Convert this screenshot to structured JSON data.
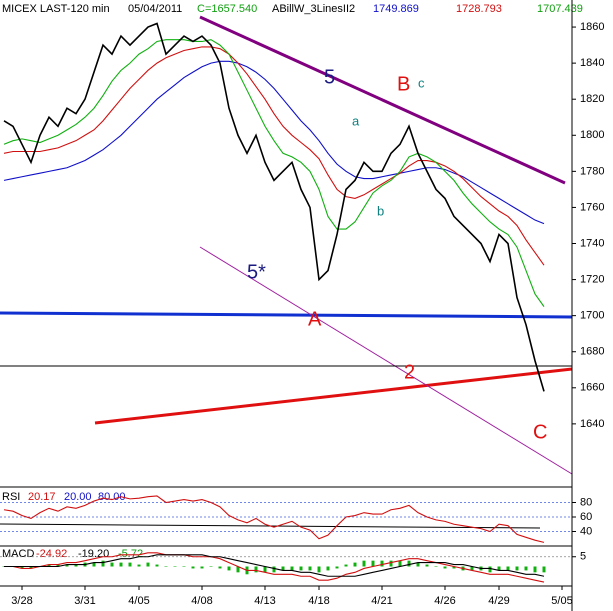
{
  "chart_data": [
    {
      "type": "line",
      "title": "MICEX LAST-120 min",
      "subtitle": "05/04/2011",
      "indicator": "ABillW_3LinesII2",
      "ylim": [
        1605,
        1875
      ],
      "yticks": [
        1640,
        1660,
        1680,
        1700,
        1720,
        1740,
        1760,
        1780,
        1800,
        1820,
        1840,
        1860
      ],
      "annotations": [
        "5",
        "B",
        "c",
        "a",
        "b",
        "5*",
        "A",
        "2",
        "C"
      ],
      "series": [
        {
          "name": "1749.869",
          "color": "#1010c8",
          "values": [
            1775,
            1776,
            1777,
            1778,
            1779,
            1780,
            1781,
            1782,
            1784,
            1786,
            1789,
            1792,
            1796,
            1800,
            1805,
            1810,
            1815,
            1820,
            1824,
            1828,
            1832,
            1835,
            1838,
            1840,
            1841,
            1841,
            1840,
            1838,
            1835,
            1831,
            1826,
            1820,
            1814,
            1808,
            1803,
            1797,
            1790,
            1784,
            1780,
            1777,
            1776,
            1776,
            1777,
            1778,
            1779,
            1780,
            1781,
            1782,
            1782,
            1781,
            1779,
            1777,
            1774,
            1771,
            1768,
            1765,
            1762,
            1759,
            1756,
            1753,
            1751,
            null,
            null
          ]
        },
        {
          "name": "1728.793",
          "color": "#d01010",
          "values": [
            1790,
            1791,
            1791,
            1791,
            1791,
            1792,
            1793,
            1795,
            1797,
            1800,
            1803,
            1808,
            1814,
            1820,
            1826,
            1831,
            1836,
            1840,
            1843,
            1845,
            1847,
            1848,
            1849,
            1849,
            1848,
            1845,
            1840,
            1834,
            1827,
            1820,
            1812,
            1805,
            1800,
            1796,
            1792,
            1787,
            1778,
            1770,
            1766,
            1765,
            1767,
            1770,
            1773,
            1776,
            1779,
            1783,
            1786,
            1786,
            1785,
            1783,
            1780,
            1776,
            1771,
            1766,
            1762,
            1758,
            1755,
            1750,
            1742,
            1735,
            1728,
            null,
            null
          ]
        },
        {
          "name": "1707.439",
          "color": "#10b010",
          "values": [
            1795,
            1797,
            1798,
            1797,
            1796,
            1798,
            1800,
            1803,
            1806,
            1810,
            1815,
            1822,
            1830,
            1836,
            1840,
            1845,
            1848,
            1852,
            1853,
            1853,
            1853,
            1852,
            1852,
            1853,
            1850,
            1845,
            1835,
            1825,
            1815,
            1805,
            1797,
            1790,
            1788,
            1785,
            1780,
            1770,
            1755,
            1748,
            1748,
            1752,
            1760,
            1768,
            1772,
            1775,
            1780,
            1788,
            1790,
            1788,
            1785,
            1780,
            1775,
            1768,
            1762,
            1757,
            1752,
            1748,
            1745,
            1738,
            1725,
            1712,
            1705,
            null,
            null
          ]
        },
        {
          "name": "C=1657.540",
          "color": "#000000",
          "values": [
            1808,
            1805,
            1795,
            1785,
            1800,
            1810,
            1805,
            1815,
            1812,
            1820,
            1835,
            1850,
            1845,
            1855,
            1850,
            1855,
            1860,
            1862,
            1845,
            1850,
            1855,
            1852,
            1855,
            1850,
            1840,
            1815,
            1800,
            1790,
            1800,
            1785,
            1775,
            1780,
            1785,
            1770,
            1760,
            1720,
            1725,
            1745,
            1770,
            1775,
            1785,
            1780,
            1780,
            1790,
            1795,
            1805,
            1790,
            1780,
            1770,
            1765,
            1755,
            1750,
            1745,
            1740,
            1730,
            1745,
            1740,
            1710,
            1695,
            1675,
            1658,
            null,
            null
          ]
        }
      ]
    },
    {
      "type": "line",
      "title": "RSI",
      "level_labels": [
        "20.00",
        "80.00"
      ],
      "ylim": [
        20,
        100
      ],
      "yticks": [
        40,
        60,
        80
      ],
      "series": [
        {
          "name": "20.17",
          "color": "#d01010",
          "values": [
            70,
            68,
            62,
            58,
            66,
            72,
            68,
            74,
            72,
            76,
            82,
            86,
            84,
            88,
            85,
            86,
            88,
            89,
            80,
            82,
            84,
            82,
            84,
            80,
            74,
            62,
            56,
            52,
            58,
            50,
            46,
            50,
            54,
            46,
            42,
            30,
            35,
            48,
            60,
            62,
            66,
            64,
            64,
            70,
            72,
            76,
            66,
            60,
            56,
            54,
            50,
            48,
            46,
            44,
            40,
            50,
            48,
            36,
            32,
            28,
            25,
            null,
            null
          ]
        }
      ]
    },
    {
      "type": "line",
      "title": "MACD",
      "ylim": [
        -10,
        10
      ],
      "yticks": [
        5
      ],
      "categories": [
        null,
        null,
        "3/28",
        null,
        null,
        null,
        null,
        null,
        null,
        "3/31",
        null,
        null,
        null,
        null,
        null,
        "4/05",
        null,
        null,
        null,
        null,
        null,
        null,
        "4/08",
        null,
        null,
        null,
        null,
        null,
        null,
        "4/13",
        null,
        null,
        null,
        null,
        null,
        "4/18",
        null,
        null,
        null,
        null,
        null,
        null,
        "4/21",
        null,
        null,
        null,
        null,
        null,
        null,
        "4/26",
        null,
        null,
        null,
        null,
        null,
        "4/29",
        null,
        null,
        null,
        null,
        null,
        null,
        "5/05"
      ],
      "series": [
        {
          "name": "-5.72",
          "color": "#10b010",
          "type": "bar",
          "values": [
            0,
            0,
            -1,
            -1,
            0,
            1,
            1,
            1,
            1,
            2,
            2,
            3,
            2,
            2,
            2,
            1,
            2,
            1,
            0,
            0,
            0,
            -1,
            -1,
            0,
            -1,
            -2,
            -3,
            -4,
            -3,
            -3,
            -3,
            -2,
            -2,
            -2,
            -2,
            -3,
            -2,
            -1,
            1,
            2,
            3,
            3,
            3,
            3,
            3,
            3,
            2,
            1,
            0,
            -1,
            -1,
            -2,
            -2,
            -2,
            -3,
            -2,
            -2,
            -2,
            -2,
            -3,
            -3,
            null,
            null
          ]
        },
        {
          "name": "-24.92",
          "color": "#d01010",
          "values": [
            0,
            0,
            -1,
            -1,
            0,
            1,
            1,
            2,
            2,
            3,
            4,
            5,
            5,
            6,
            6,
            6,
            7,
            7,
            6,
            6,
            6,
            5,
            5,
            5,
            4,
            2,
            0,
            -2,
            -2,
            -3,
            -4,
            -4,
            -4,
            -5,
            -5,
            -7,
            -7,
            -6,
            -4,
            -3,
            -1,
            0,
            1,
            2,
            3,
            4,
            4,
            3,
            2,
            1,
            0,
            -1,
            -2,
            -3,
            -4,
            -4,
            -4,
            -5,
            -6,
            -7,
            -8,
            null,
            null
          ]
        },
        {
          "name": "-19.20",
          "color": "#000000",
          "values": [
            0,
            0,
            0,
            0,
            0,
            0,
            0,
            1,
            1,
            1,
            2,
            2,
            3,
            4,
            4,
            5,
            5,
            6,
            6,
            6,
            6,
            6,
            6,
            5,
            5,
            4,
            3,
            2,
            1,
            0,
            -1,
            -2,
            -2,
            -3,
            -3,
            -4,
            -5,
            -5,
            -5,
            -5,
            -4,
            -3,
            -2,
            -1,
            0,
            1,
            2,
            2,
            2,
            2,
            1,
            1,
            0,
            -1,
            -1,
            -2,
            -2,
            -3,
            -4,
            -4,
            -5,
            null,
            null
          ]
        }
      ]
    }
  ]
}
